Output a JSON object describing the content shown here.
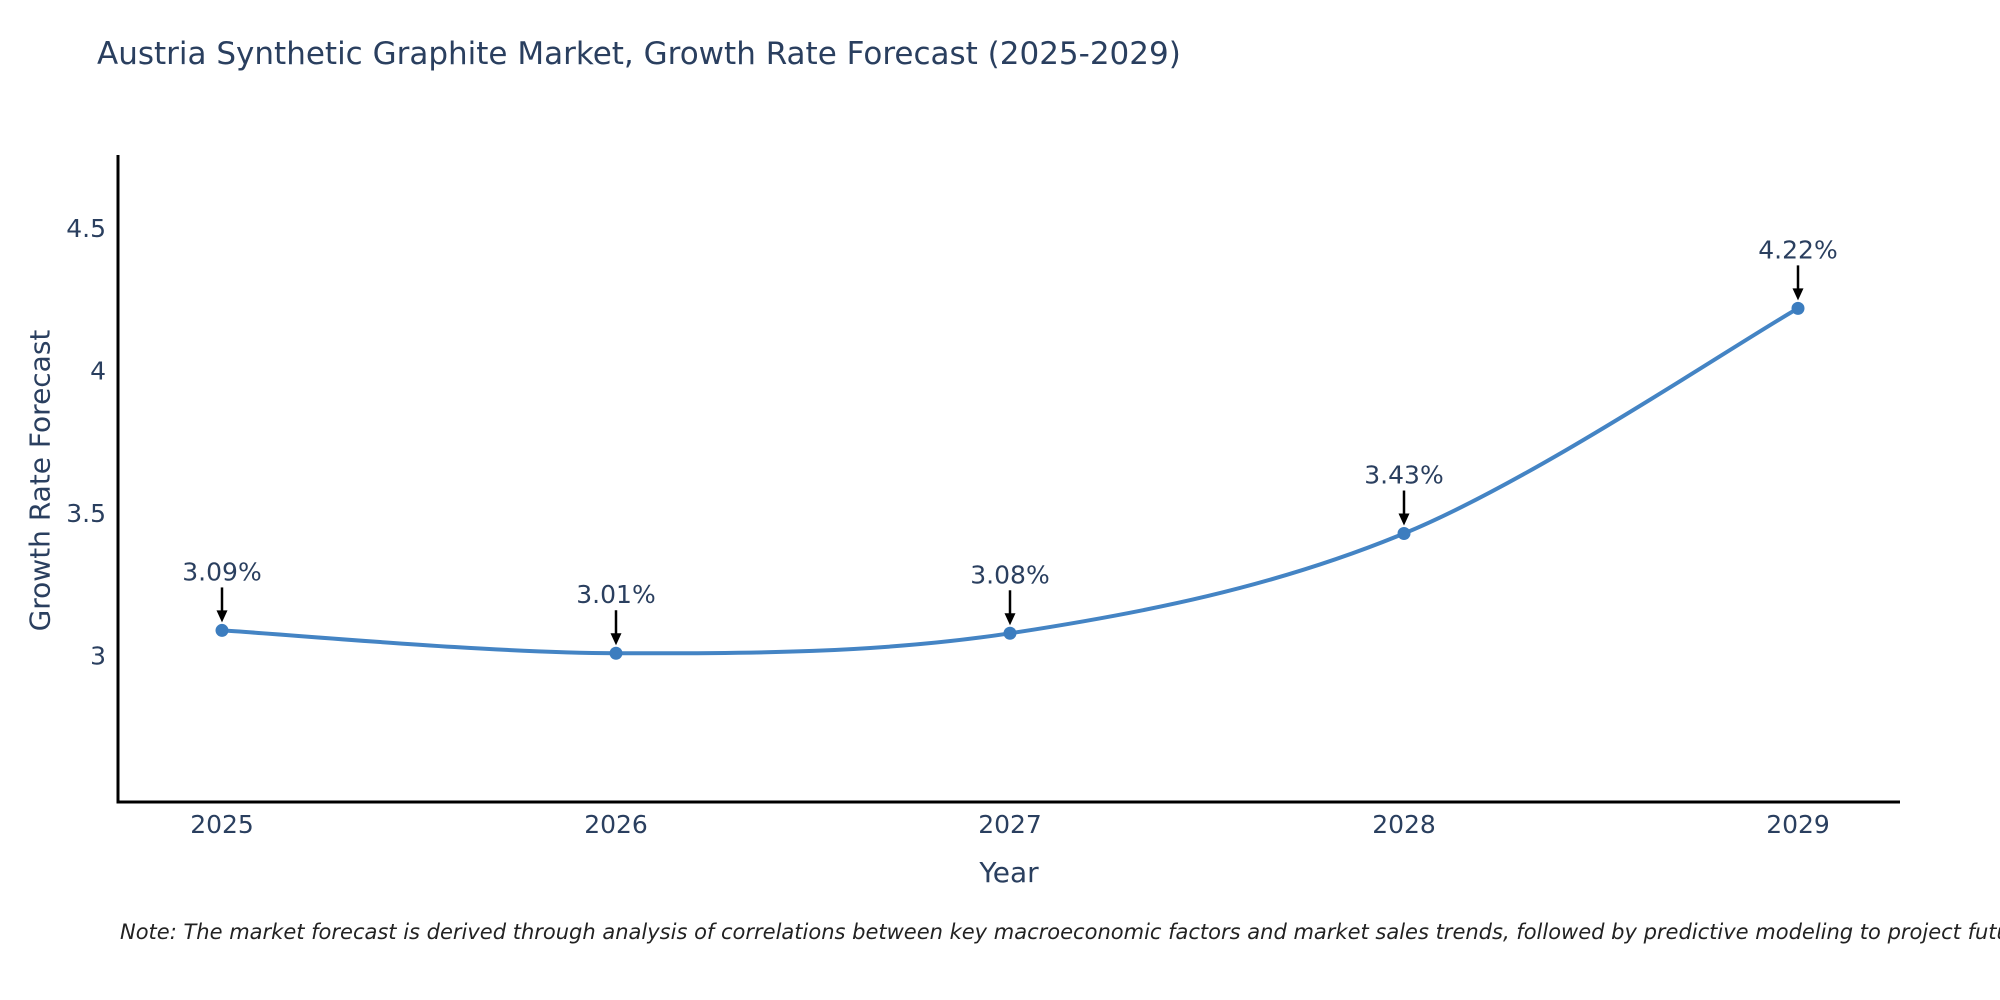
{
  "title": "Austria Synthetic Graphite Market, Growth Rate Forecast (2025-2029)",
  "footnote": "Note: The market forecast is derived through analysis of correlations between key macroeconomic factors and market sales trends, followed by predictive modeling to project future sales",
  "chart_data": {
    "type": "line",
    "line_shape": "spline",
    "x": [
      2025,
      2026,
      2027,
      2028,
      2029
    ],
    "xticklabels": [
      "2025",
      "2026",
      "2027",
      "2028",
      "2029"
    ],
    "series": [
      {
        "name": "Growth Rate Forecast",
        "values": [
          3.09,
          3.01,
          3.08,
          3.43,
          4.22
        ]
      }
    ],
    "point_labels": [
      "3.09%",
      "3.01%",
      "3.08%",
      "3.43%",
      "4.22%"
    ],
    "title": "Austria Synthetic Graphite Market, Growth Rate Forecast (2025-2029)",
    "xlabel": "Year",
    "ylabel": "Growth Rate Forecast",
    "yticks": [
      3,
      3.5,
      4,
      4.5
    ],
    "ylim": [
      2.49,
      4.76
    ],
    "grid": false,
    "legend": "none",
    "annotation_arrows": true,
    "colors": {
      "line": "#4484c4",
      "marker": "#3c7dbf",
      "text": "#2a3f5f",
      "axis": "#000000",
      "arrow": "#000000",
      "background": "#ffffff"
    }
  }
}
